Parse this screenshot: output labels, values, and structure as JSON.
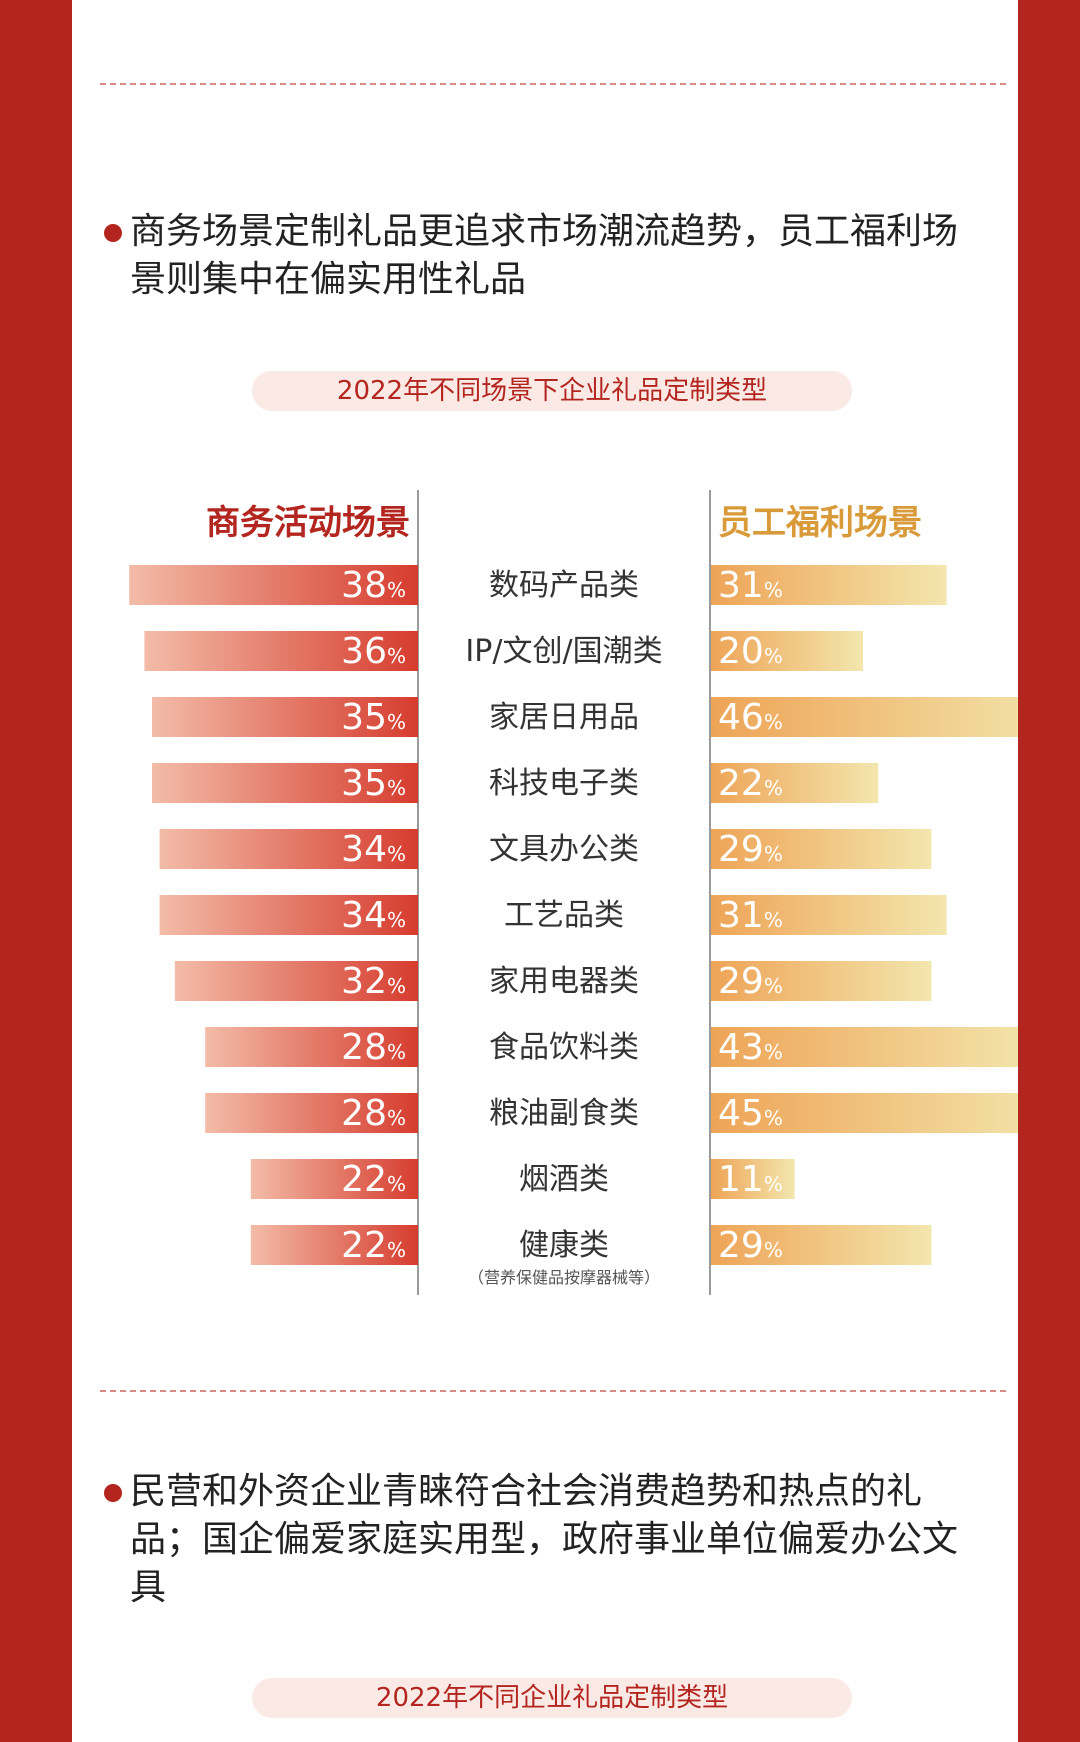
{
  "section1": {
    "heading": "商务场景定制礼品更追求市场潮流趋势，员工福利场景则集中在偏实用性礼品",
    "chart_title": "2022年不同场景下企业礼品定制类型"
  },
  "section2": {
    "heading": "民营和外资企业青睐符合社会消费趋势和热点的礼品；国企偏爱家庭实用型，政府事业单位偏爱办公文具",
    "chart_title": "2022年不同企业礼品定制类型"
  },
  "colors": {
    "brand": "#b3261f",
    "left_bar_start": "#f3bca8",
    "left_bar_end": "#d63c2e",
    "right_bar_start": "#eea457",
    "right_bar_end": "#f3e6ad",
    "left_header": "#b3261f",
    "right_header": "#d99a3a"
  },
  "chart_data": {
    "type": "bar",
    "orientation": "butterfly",
    "unit": "%",
    "categories": [
      "数码产品类",
      "IP/文创/国潮类",
      "家居日用品",
      "科技电子类",
      "文具办公类",
      "工艺品类",
      "家用电器类",
      "食品饮料类",
      "粮油副食类",
      "烟酒类",
      "健康类"
    ],
    "category_notes": [
      "",
      "",
      "",
      "",
      "",
      "",
      "",
      "",
      "",
      "",
      "（营养保健品按摩器械等）"
    ],
    "series": [
      {
        "name": "商务活动场景",
        "values": [
          38,
          36,
          35,
          35,
          34,
          34,
          32,
          28,
          28,
          22,
          22
        ]
      },
      {
        "name": "员工福利场景",
        "values": [
          31,
          20,
          46,
          22,
          29,
          31,
          29,
          43,
          45,
          11,
          29
        ]
      }
    ]
  }
}
